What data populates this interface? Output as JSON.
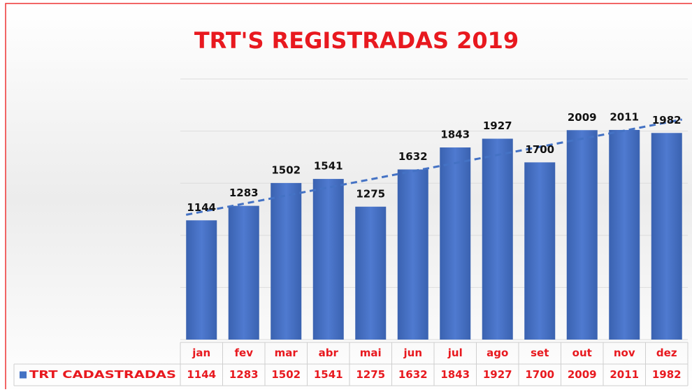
{
  "chart_data": {
    "type": "bar",
    "title": "TRT'S REGISTRADAS 2019",
    "categories": [
      "jan",
      "fev",
      "mar",
      "abr",
      "mai",
      "jun",
      "jul",
      "ago",
      "set",
      "out",
      "nov",
      "dez"
    ],
    "series": [
      {
        "name": "TRT CADASTRADAS",
        "color": "#4472c4",
        "values": [
          1144,
          1283,
          1502,
          1541,
          1275,
          1632,
          1843,
          1927,
          1700,
          2009,
          2011,
          1982
        ]
      }
    ],
    "ylim": [
      0,
      2500
    ],
    "yticks": [
      0,
      500,
      1000,
      1500,
      2000,
      2500
    ],
    "grid": true,
    "trendline": "linear",
    "data_table": true
  }
}
